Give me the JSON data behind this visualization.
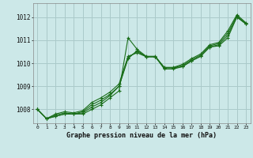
{
  "title": "Graphe pression niveau de la mer (hPa)",
  "bg_color": "#cce8e8",
  "grid_color": "#aacaca",
  "line_color": "#1a6e1a",
  "xlim": [
    -0.5,
    23.5
  ],
  "ylim": [
    1007.4,
    1012.6
  ],
  "yticks": [
    1008,
    1009,
    1010,
    1011,
    1012
  ],
  "xticks": [
    0,
    1,
    2,
    3,
    4,
    5,
    6,
    7,
    8,
    9,
    10,
    11,
    12,
    13,
    14,
    15,
    16,
    17,
    18,
    19,
    20,
    21,
    22,
    23
  ],
  "series": [
    [
      1008.0,
      1007.6,
      1007.7,
      1007.8,
      1007.8,
      1007.8,
      1008.0,
      1008.2,
      1008.5,
      1008.8,
      1011.1,
      1010.6,
      1010.3,
      1010.3,
      1009.8,
      1009.8,
      1009.85,
      1010.1,
      1010.3,
      1010.7,
      1010.75,
      1011.1,
      1012.0,
      1011.7
    ],
    [
      1008.0,
      1007.6,
      1007.7,
      1007.8,
      1007.8,
      1007.85,
      1008.1,
      1008.3,
      1008.6,
      1009.0,
      1010.2,
      1010.55,
      1010.28,
      1010.28,
      1009.75,
      1009.75,
      1009.85,
      1010.1,
      1010.3,
      1010.7,
      1010.8,
      1011.2,
      1012.0,
      1011.7
    ],
    [
      1008.0,
      1007.6,
      1007.75,
      1007.85,
      1007.8,
      1007.9,
      1008.2,
      1008.4,
      1008.65,
      1009.0,
      1010.25,
      1010.5,
      1010.28,
      1010.28,
      1009.8,
      1009.8,
      1009.9,
      1010.15,
      1010.35,
      1010.75,
      1010.85,
      1011.3,
      1012.05,
      1011.72
    ],
    [
      1008.0,
      1007.6,
      1007.8,
      1007.9,
      1007.85,
      1007.95,
      1008.3,
      1008.5,
      1008.75,
      1009.1,
      1010.3,
      1010.45,
      1010.28,
      1010.28,
      1009.82,
      1009.82,
      1009.95,
      1010.2,
      1010.4,
      1010.8,
      1010.9,
      1011.4,
      1012.1,
      1011.75
    ]
  ]
}
